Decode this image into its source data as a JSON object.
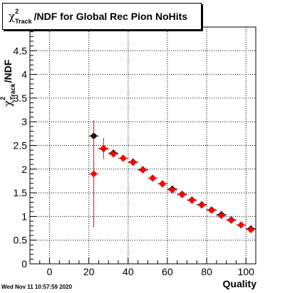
{
  "title": {
    "symbol": "χ",
    "sup": "2",
    "sub": "Track",
    "rest": "/NDF for Global Rec Pion NoHits"
  },
  "ylabel": {
    "symbol": "χ",
    "sup": "2",
    "sub": "Track",
    "rest": "/NDF"
  },
  "xlabel": "Quality",
  "timestamp": "Wed Nov 11 10:57:59 2020",
  "chart_data": {
    "type": "scatter",
    "xlim": [
      -10,
      105
    ],
    "ylim": [
      0,
      5
    ],
    "x_ticks": [
      0,
      20,
      40,
      60,
      80,
      100
    ],
    "y_ticks": [
      0,
      0.5,
      1,
      1.5,
      2,
      2.5,
      3,
      3.5,
      4,
      4.5
    ],
    "y_tick_labels": [
      "0",
      "0.5",
      "1",
      "1.5",
      "2",
      "2.5",
      "3",
      "3.5",
      "4",
      "4.5"
    ],
    "grid": true,
    "series": [
      {
        "color": "#000000",
        "marker": "diamond",
        "points": [
          {
            "x": 22.5,
            "y": 2.7,
            "yerr": 0.0
          },
          {
            "x": 27.5,
            "y": 2.43,
            "yerr": 0.0
          },
          {
            "x": 32.5,
            "y": 2.34,
            "yerr": 0.0
          },
          {
            "x": 37.5,
            "y": 2.23,
            "yerr": 0.0
          },
          {
            "x": 42.5,
            "y": 2.15,
            "yerr": 0.0
          },
          {
            "x": 47.5,
            "y": 1.99,
            "yerr": 0.0
          },
          {
            "x": 52.5,
            "y": 1.81,
            "yerr": 0.0
          },
          {
            "x": 57.5,
            "y": 1.69,
            "yerr": 0.0
          },
          {
            "x": 62.5,
            "y": 1.58,
            "yerr": 0.0
          },
          {
            "x": 67.5,
            "y": 1.47,
            "yerr": 0.0
          },
          {
            "x": 72.5,
            "y": 1.35,
            "yerr": 0.0
          },
          {
            "x": 77.5,
            "y": 1.25,
            "yerr": 0.0
          },
          {
            "x": 82.5,
            "y": 1.14,
            "yerr": 0.0
          },
          {
            "x": 87.5,
            "y": 1.04,
            "yerr": 0.0
          },
          {
            "x": 92.5,
            "y": 0.93,
            "yerr": 0.0
          },
          {
            "x": 97.5,
            "y": 0.82,
            "yerr": 0.0
          },
          {
            "x": 102.5,
            "y": 0.74,
            "yerr": 0.0
          }
        ]
      },
      {
        "color": "#ff0000",
        "marker": "diamond",
        "points": [
          {
            "x": 22.5,
            "y": 1.9,
            "yerr": 1.13
          },
          {
            "x": 27.5,
            "y": 2.44,
            "yerr": 0.22
          },
          {
            "x": 32.5,
            "y": 2.32,
            "yerr": 0.07
          },
          {
            "x": 37.5,
            "y": 2.23,
            "yerr": 0.05
          },
          {
            "x": 42.5,
            "y": 2.14,
            "yerr": 0.04
          },
          {
            "x": 47.5,
            "y": 1.98,
            "yerr": 0.03
          },
          {
            "x": 52.5,
            "y": 1.81,
            "yerr": 0.03
          },
          {
            "x": 57.5,
            "y": 1.69,
            "yerr": 0.02
          },
          {
            "x": 62.5,
            "y": 1.56,
            "yerr": 0.02
          },
          {
            "x": 67.5,
            "y": 1.46,
            "yerr": 0.02
          },
          {
            "x": 72.5,
            "y": 1.34,
            "yerr": 0.02
          },
          {
            "x": 77.5,
            "y": 1.24,
            "yerr": 0.02
          },
          {
            "x": 82.5,
            "y": 1.13,
            "yerr": 0.02
          },
          {
            "x": 87.5,
            "y": 1.02,
            "yerr": 0.02
          },
          {
            "x": 92.5,
            "y": 0.92,
            "yerr": 0.02
          },
          {
            "x": 97.5,
            "y": 0.82,
            "yerr": 0.02
          },
          {
            "x": 102.5,
            "y": 0.72,
            "yerr": 0.02
          }
        ]
      }
    ]
  }
}
